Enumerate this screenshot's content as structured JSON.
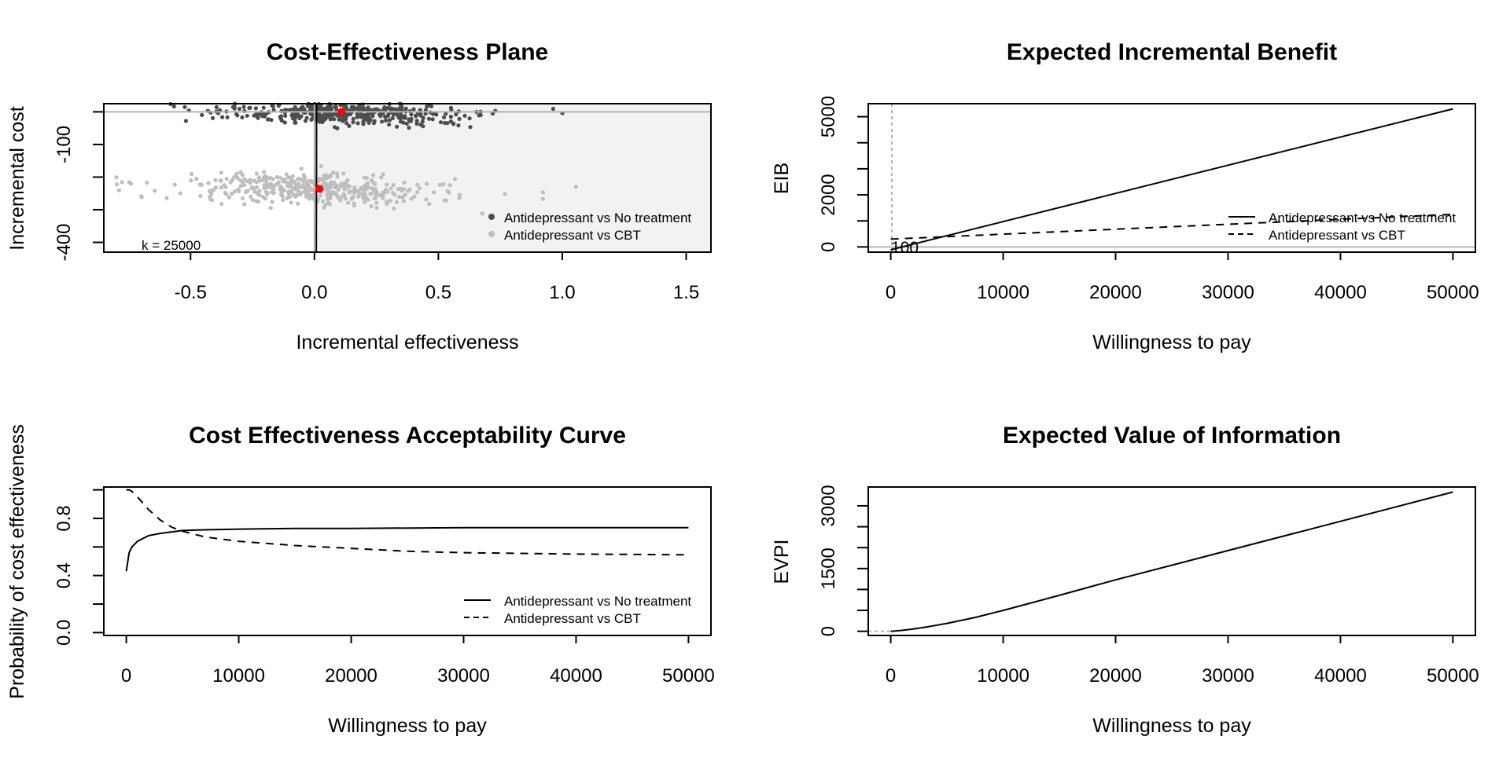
{
  "chart_data": [
    {
      "type": "scatter",
      "title": "Cost-Effectiveness Plane",
      "xlabel": "Incremental effectiveness",
      "ylabel": "Incremental cost",
      "xlim": [
        -0.85,
        1.6
      ],
      "ylim": [
        -430,
        25
      ],
      "x_ticks": [
        "-0.5",
        "0.0",
        "0.5",
        "1.0",
        "1.5"
      ],
      "y_ticks": [
        "-100",
        "-400"
      ],
      "annotation": "k = 25000",
      "wtp_threshold": 25000,
      "grid": false,
      "legend_position": "right",
      "colors": {
        "series1": "#4d4d4d",
        "series2": "#bebebe",
        "mean": "#ff0000",
        "acceptable_region": "#f2f2f2"
      },
      "series": [
        {
          "name": "Antidepressant vs No treatment",
          "mean": [
            0.11,
            0
          ],
          "x_center": 0.12,
          "x_spread": 0.22,
          "y_center": -5,
          "y_spread": 30
        },
        {
          "name": "Antidepressant vs CBT",
          "mean": [
            0.02,
            -236
          ],
          "x_center": 0.0,
          "x_spread": 0.2,
          "y_center": -236,
          "y_spread": 40
        }
      ]
    },
    {
      "type": "line",
      "title": "Expected Incremental Benefit",
      "xlabel": "Willingness to pay",
      "ylabel": "EIB",
      "xlim": [
        -2000,
        52000
      ],
      "ylim": [
        -200,
        5500
      ],
      "x_ticks": [
        "0",
        "10000",
        "20000",
        "30000",
        "40000",
        "50000"
      ],
      "y_ticks": [
        "0",
        "2000",
        "5000"
      ],
      "annotation": "100",
      "legend_position": "right",
      "series": [
        {
          "name": "Antidepressant vs No treatment",
          "x": [
            0,
            50000
          ],
          "y": [
            -110,
            5300
          ]
        },
        {
          "name": "Antidepressant vs CBT",
          "x": [
            0,
            50000
          ],
          "y": [
            300,
            1250
          ]
        }
      ]
    },
    {
      "type": "line",
      "title": "Cost Effectiveness Acceptability Curve",
      "xlabel": "Willingness to pay",
      "ylabel": "Probability of cost effectiveness",
      "xlim": [
        -2000,
        52000
      ],
      "ylim": [
        -0.02,
        1.02
      ],
      "x_ticks": [
        "0",
        "10000",
        "20000",
        "30000",
        "40000",
        "50000"
      ],
      "y_ticks": [
        "0.0",
        "0.4",
        "0.8"
      ],
      "legend_position": "bottom-right",
      "series": [
        {
          "name": "Antidepressant vs No treatment",
          "x": [
            0,
            250,
            500,
            1000,
            1500,
            2000,
            3000,
            4000,
            5000,
            7000,
            10000,
            15000,
            20000,
            30000,
            40000,
            50000
          ],
          "y": [
            0.43,
            0.56,
            0.6,
            0.64,
            0.66,
            0.68,
            0.695,
            0.705,
            0.715,
            0.72,
            0.725,
            0.73,
            0.73,
            0.735,
            0.735,
            0.735
          ]
        },
        {
          "name": "Antidepressant vs CBT",
          "x": [
            0,
            250,
            500,
            1000,
            2000,
            3000,
            4000,
            5000,
            7000,
            10000,
            15000,
            20000,
            25000,
            30000,
            40000,
            50000
          ],
          "y": [
            1.0,
            1.0,
            0.99,
            0.95,
            0.86,
            0.79,
            0.74,
            0.71,
            0.67,
            0.64,
            0.61,
            0.59,
            0.57,
            0.56,
            0.55,
            0.545
          ]
        }
      ]
    },
    {
      "type": "line",
      "title": "Expected Value of Information",
      "xlabel": "Willingness to pay",
      "ylabel": "EVPI",
      "xlim": [
        -2000,
        52000
      ],
      "ylim": [
        -100,
        3450
      ],
      "x_ticks": [
        "0",
        "10000",
        "20000",
        "30000",
        "40000",
        "50000"
      ],
      "y_ticks": [
        "0",
        "1500",
        "3000"
      ],
      "series": [
        {
          "x": [
            0,
            1000,
            2000,
            3000,
            4000,
            5000,
            7500,
            10000,
            15000,
            20000,
            30000,
            40000,
            50000
          ],
          "y": [
            0,
            22,
            55,
            95,
            140,
            190,
            330,
            500,
            860,
            1230,
            1930,
            2630,
            3330
          ]
        }
      ]
    }
  ]
}
